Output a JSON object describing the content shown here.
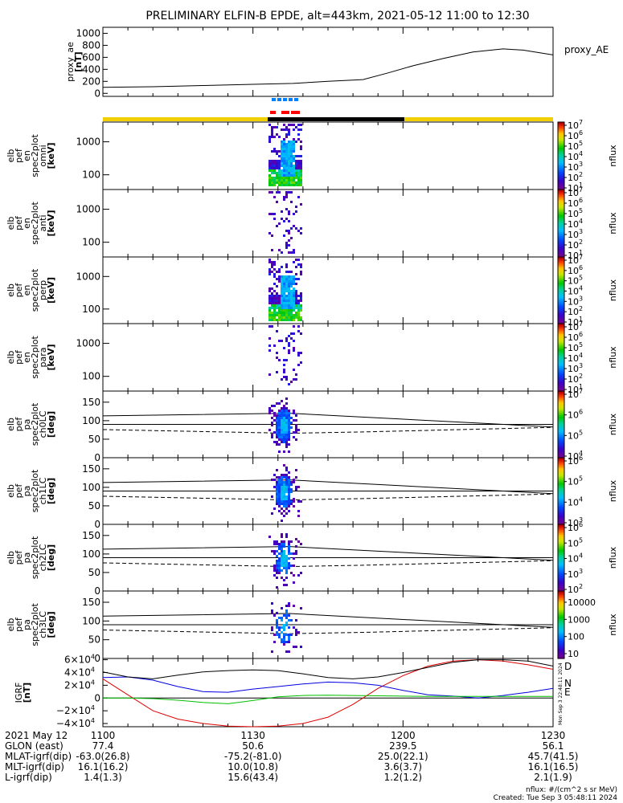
{
  "title": "PRELIMINARY ELFIN-B EPDE, alt=443km, 2021-05-12 11:00 to 12:30",
  "chart_data": [
    {
      "type": "line",
      "panel": "proxy_ae",
      "ylabel_lines": [
        "proxy_ae",
        "[nT]"
      ],
      "legend": "proxy_AE",
      "ylim": [
        -50,
        1100
      ],
      "yticks": [
        0,
        200,
        400,
        600,
        800,
        1000
      ],
      "x_minutes": [
        0,
        10,
        20,
        30,
        38,
        45,
        52,
        57,
        62,
        68,
        74,
        80,
        84,
        87,
        90
      ],
      "values": [
        100,
        110,
        130,
        150,
        165,
        200,
        230,
        340,
        460,
        580,
        690,
        740,
        720,
        680,
        640
      ]
    },
    {
      "type": "heatmap",
      "panel": "omni energy spectrogram",
      "ylabel_lines": [
        "elb",
        "pef",
        "en",
        "spec2plot",
        "omni",
        "[keV]"
      ],
      "yscale": "log",
      "ytick_labels": [
        "100",
        "1000"
      ],
      "colorbar_label": "nflux",
      "colorbar_exponents": [
        "1",
        "2",
        "3",
        "4",
        "5",
        "6",
        "7"
      ]
    },
    {
      "type": "heatmap",
      "panel": "anti energy spectrogram",
      "ylabel_lines": [
        "elb",
        "pef",
        "en",
        "spec2plot",
        "anti",
        "[keV]"
      ],
      "yscale": "log",
      "ytick_labels": [
        "100",
        "1000"
      ],
      "colorbar_label": "nflux",
      "colorbar_exponents": [
        "1",
        "2",
        "3",
        "4",
        "5",
        "6",
        "7"
      ]
    },
    {
      "type": "heatmap",
      "panel": "perp energy spectrogram",
      "ylabel_lines": [
        "elb",
        "pef",
        "en",
        "spec2plot",
        "perp",
        "[keV]"
      ],
      "yscale": "log",
      "ytick_labels": [
        "100",
        "1000"
      ],
      "colorbar_label": "nflux",
      "colorbar_exponents": [
        "1",
        "2",
        "3",
        "4",
        "5",
        "6",
        "7"
      ]
    },
    {
      "type": "heatmap",
      "panel": "para energy spectrogram",
      "ylabel_lines": [
        "elb",
        "pef",
        "en",
        "spec2plot",
        "para",
        "[keV]"
      ],
      "yscale": "log",
      "ytick_labels": [
        "100",
        "1000"
      ],
      "colorbar_label": "nflux",
      "colorbar_exponents": [
        "1",
        "2",
        "3",
        "4",
        "5",
        "6",
        "7"
      ]
    },
    {
      "type": "heatmap",
      "panel": "ch0LC",
      "ylabel_lines": [
        "elb",
        "pef",
        "pa",
        "spec2plot",
        "ch0LC",
        "[deg]"
      ],
      "ylim": [
        0,
        180
      ],
      "yticks": [
        0,
        50,
        100,
        150
      ],
      "colorbar_label": "nflux",
      "colorbar_exponents": [
        "4",
        "5",
        "6",
        "7"
      ]
    },
    {
      "type": "heatmap",
      "panel": "ch1LC",
      "ylabel_lines": [
        "elb",
        "pef",
        "pa",
        "spec2plot",
        "ch1LC",
        "[deg]"
      ],
      "ylim": [
        0,
        180
      ],
      "yticks": [
        0,
        50,
        100,
        150
      ],
      "colorbar_label": "nflux",
      "colorbar_exponents": [
        "3",
        "4",
        "5",
        "6"
      ]
    },
    {
      "type": "heatmap",
      "panel": "ch2LC",
      "ylabel_lines": [
        "elb",
        "pef",
        "pa",
        "spec2plot",
        "ch2LC",
        "[deg]"
      ],
      "ylim": [
        0,
        180
      ],
      "yticks": [
        0,
        50,
        100,
        150
      ],
      "colorbar_label": "nflux",
      "colorbar_exponents": [
        "2",
        "3",
        "4",
        "5",
        "6"
      ]
    },
    {
      "type": "heatmap",
      "panel": "ch3LC",
      "ylabel_lines": [
        "elb",
        "pef",
        "pa",
        "spec2plot",
        "ch3LC",
        "[deg]"
      ],
      "ylim": [
        0,
        180
      ],
      "yticks": [
        0,
        50,
        100,
        150
      ],
      "colorbar_label": "nflux",
      "colorbar_tick_labels": [
        "10",
        "100",
        "1000",
        "10000"
      ]
    },
    {
      "type": "line",
      "panel": "IGRF",
      "ylabel_lines": [
        "IGRF",
        "[nT]"
      ],
      "ylim": [
        -45000,
        62000
      ],
      "yticks": [
        -40000,
        -20000,
        0,
        20000,
        40000,
        60000
      ],
      "x_minutes": [
        0,
        5,
        10,
        15,
        20,
        25,
        30,
        35,
        40,
        45,
        50,
        55,
        60,
        65,
        70,
        75,
        80,
        85,
        90
      ],
      "series": [
        {
          "name": "D",
          "color": "#e00000",
          "values": [
            30000,
            5000,
            -20000,
            -33000,
            -40000,
            -44000,
            -45000,
            -44000,
            -40000,
            -30000,
            -10000,
            15000,
            35000,
            50000,
            58000,
            60000,
            58000,
            52000,
            45000
          ]
        },
        {
          "name": "N",
          "color": "#0000e0",
          "values": [
            32000,
            33000,
            28000,
            18000,
            10000,
            9000,
            14000,
            18000,
            22000,
            25000,
            24000,
            20000,
            12000,
            5000,
            3000,
            0,
            4000,
            9000,
            15000
          ]
        },
        {
          "name": "E",
          "color": "#00c000",
          "values": [
            0,
            0,
            -1000,
            -3500,
            -7000,
            -9000,
            -4000,
            2000,
            4000,
            4500,
            4000,
            3500,
            3000,
            2500,
            2500,
            2500,
            2500,
            2500,
            2500
          ]
        },
        {
          "name": "",
          "color": "#000000",
          "values": [
            41000,
            33000,
            30000,
            36000,
            41000,
            43000,
            44000,
            43000,
            38000,
            32000,
            30000,
            33000,
            40000,
            48000,
            56000,
            60000,
            60000,
            58000,
            50000
          ]
        }
      ]
    }
  ],
  "colorbar_base": "10",
  "x_ticks": [
    {
      "minutes": 0,
      "label": "1100",
      "glon": "77.4",
      "mlat": "-63.0(26.8)",
      "mlt": "16.1(16.2)",
      "l": "1.4(1.3)"
    },
    {
      "minutes": 30,
      "label": "1130",
      "glon": "50.6",
      "mlat": "-75.2(-81.0)",
      "mlt": "10.0(10.8)",
      "l": "15.6(43.4)"
    },
    {
      "minutes": 60,
      "label": "1200",
      "glon": "239.5",
      "mlat": "25.0(22.1)",
      "mlt": "3.6(3.7)",
      "l": "1.2(1.2)"
    },
    {
      "minutes": 90,
      "label": "1230",
      "glon": "56.1",
      "mlat": "45.7(41.5)",
      "mlt": "16.1(16.5)",
      "l": "2.1(1.9)"
    }
  ],
  "row_labels": {
    "date": "2021 May 12",
    "glon": "GLON (east)",
    "mlat": "MLAT-igrf(dip)",
    "mlt": "MLT-igrf(dip)",
    "l": "L-igrf(dip)"
  },
  "footer": {
    "units": "nflux: #/(cm^2 s sr MeV)",
    "created": "Created: Tue Sep  3 05:48:11 2024"
  },
  "side_stamp": "Mon Sep  3 22:48:11 2024",
  "colors": {
    "sunlight_bar": "#f0d000",
    "shadow_bar": "#000000",
    "marker_blue": "#0080ff",
    "marker_red": "#ff0000"
  }
}
